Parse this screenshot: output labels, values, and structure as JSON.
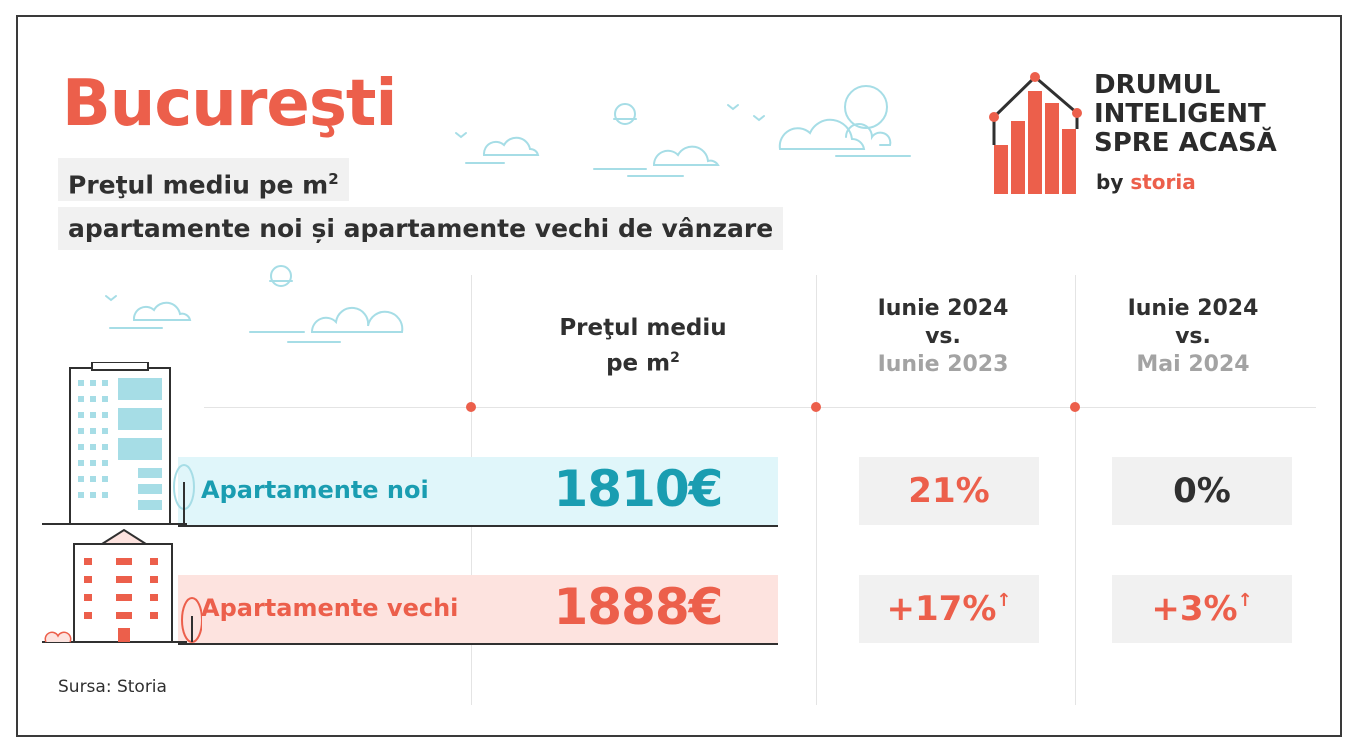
{
  "title": "Bucureşti",
  "subtitle_line1": "Preţul mediu pe m",
  "subtitle_line1_sup": "2",
  "subtitle_line2": "apartamente noi și apartamente vechi de vânzare",
  "logo": {
    "line1": "DRUMUL",
    "line2": "INTELIGENT",
    "line3": "SPRE ACASĂ",
    "by": "by",
    "brand": "storia"
  },
  "columns": {
    "price_line1": "Preţul mediu",
    "price_line2": "pe m",
    "price_sup": "2",
    "yoy_line1": "Iunie 2024",
    "yoy_line2": "vs.",
    "yoy_line3": "Iunie 2023",
    "mom_line1": "Iunie 2024",
    "mom_line2": "vs.",
    "mom_line3": "Mai 2024"
  },
  "rows": [
    {
      "label": "Apartamente noi",
      "price": "1810€",
      "yoy": "21%",
      "yoy_arrow": "",
      "mom": "0%",
      "mom_arrow": ""
    },
    {
      "label": "Apartamente vechi",
      "price": "1888€",
      "yoy": "+17%",
      "yoy_arrow": "↑",
      "mom": "+3%",
      "mom_arrow": "↑"
    }
  ],
  "source": "Sursa: Storia",
  "colors": {
    "accent": "#ec5f4b",
    "teal": "#1a9db1",
    "new_band": "#e0f6fa",
    "old_band": "#fde3df",
    "cloud": "#a6dde6",
    "dark": "#303030"
  }
}
